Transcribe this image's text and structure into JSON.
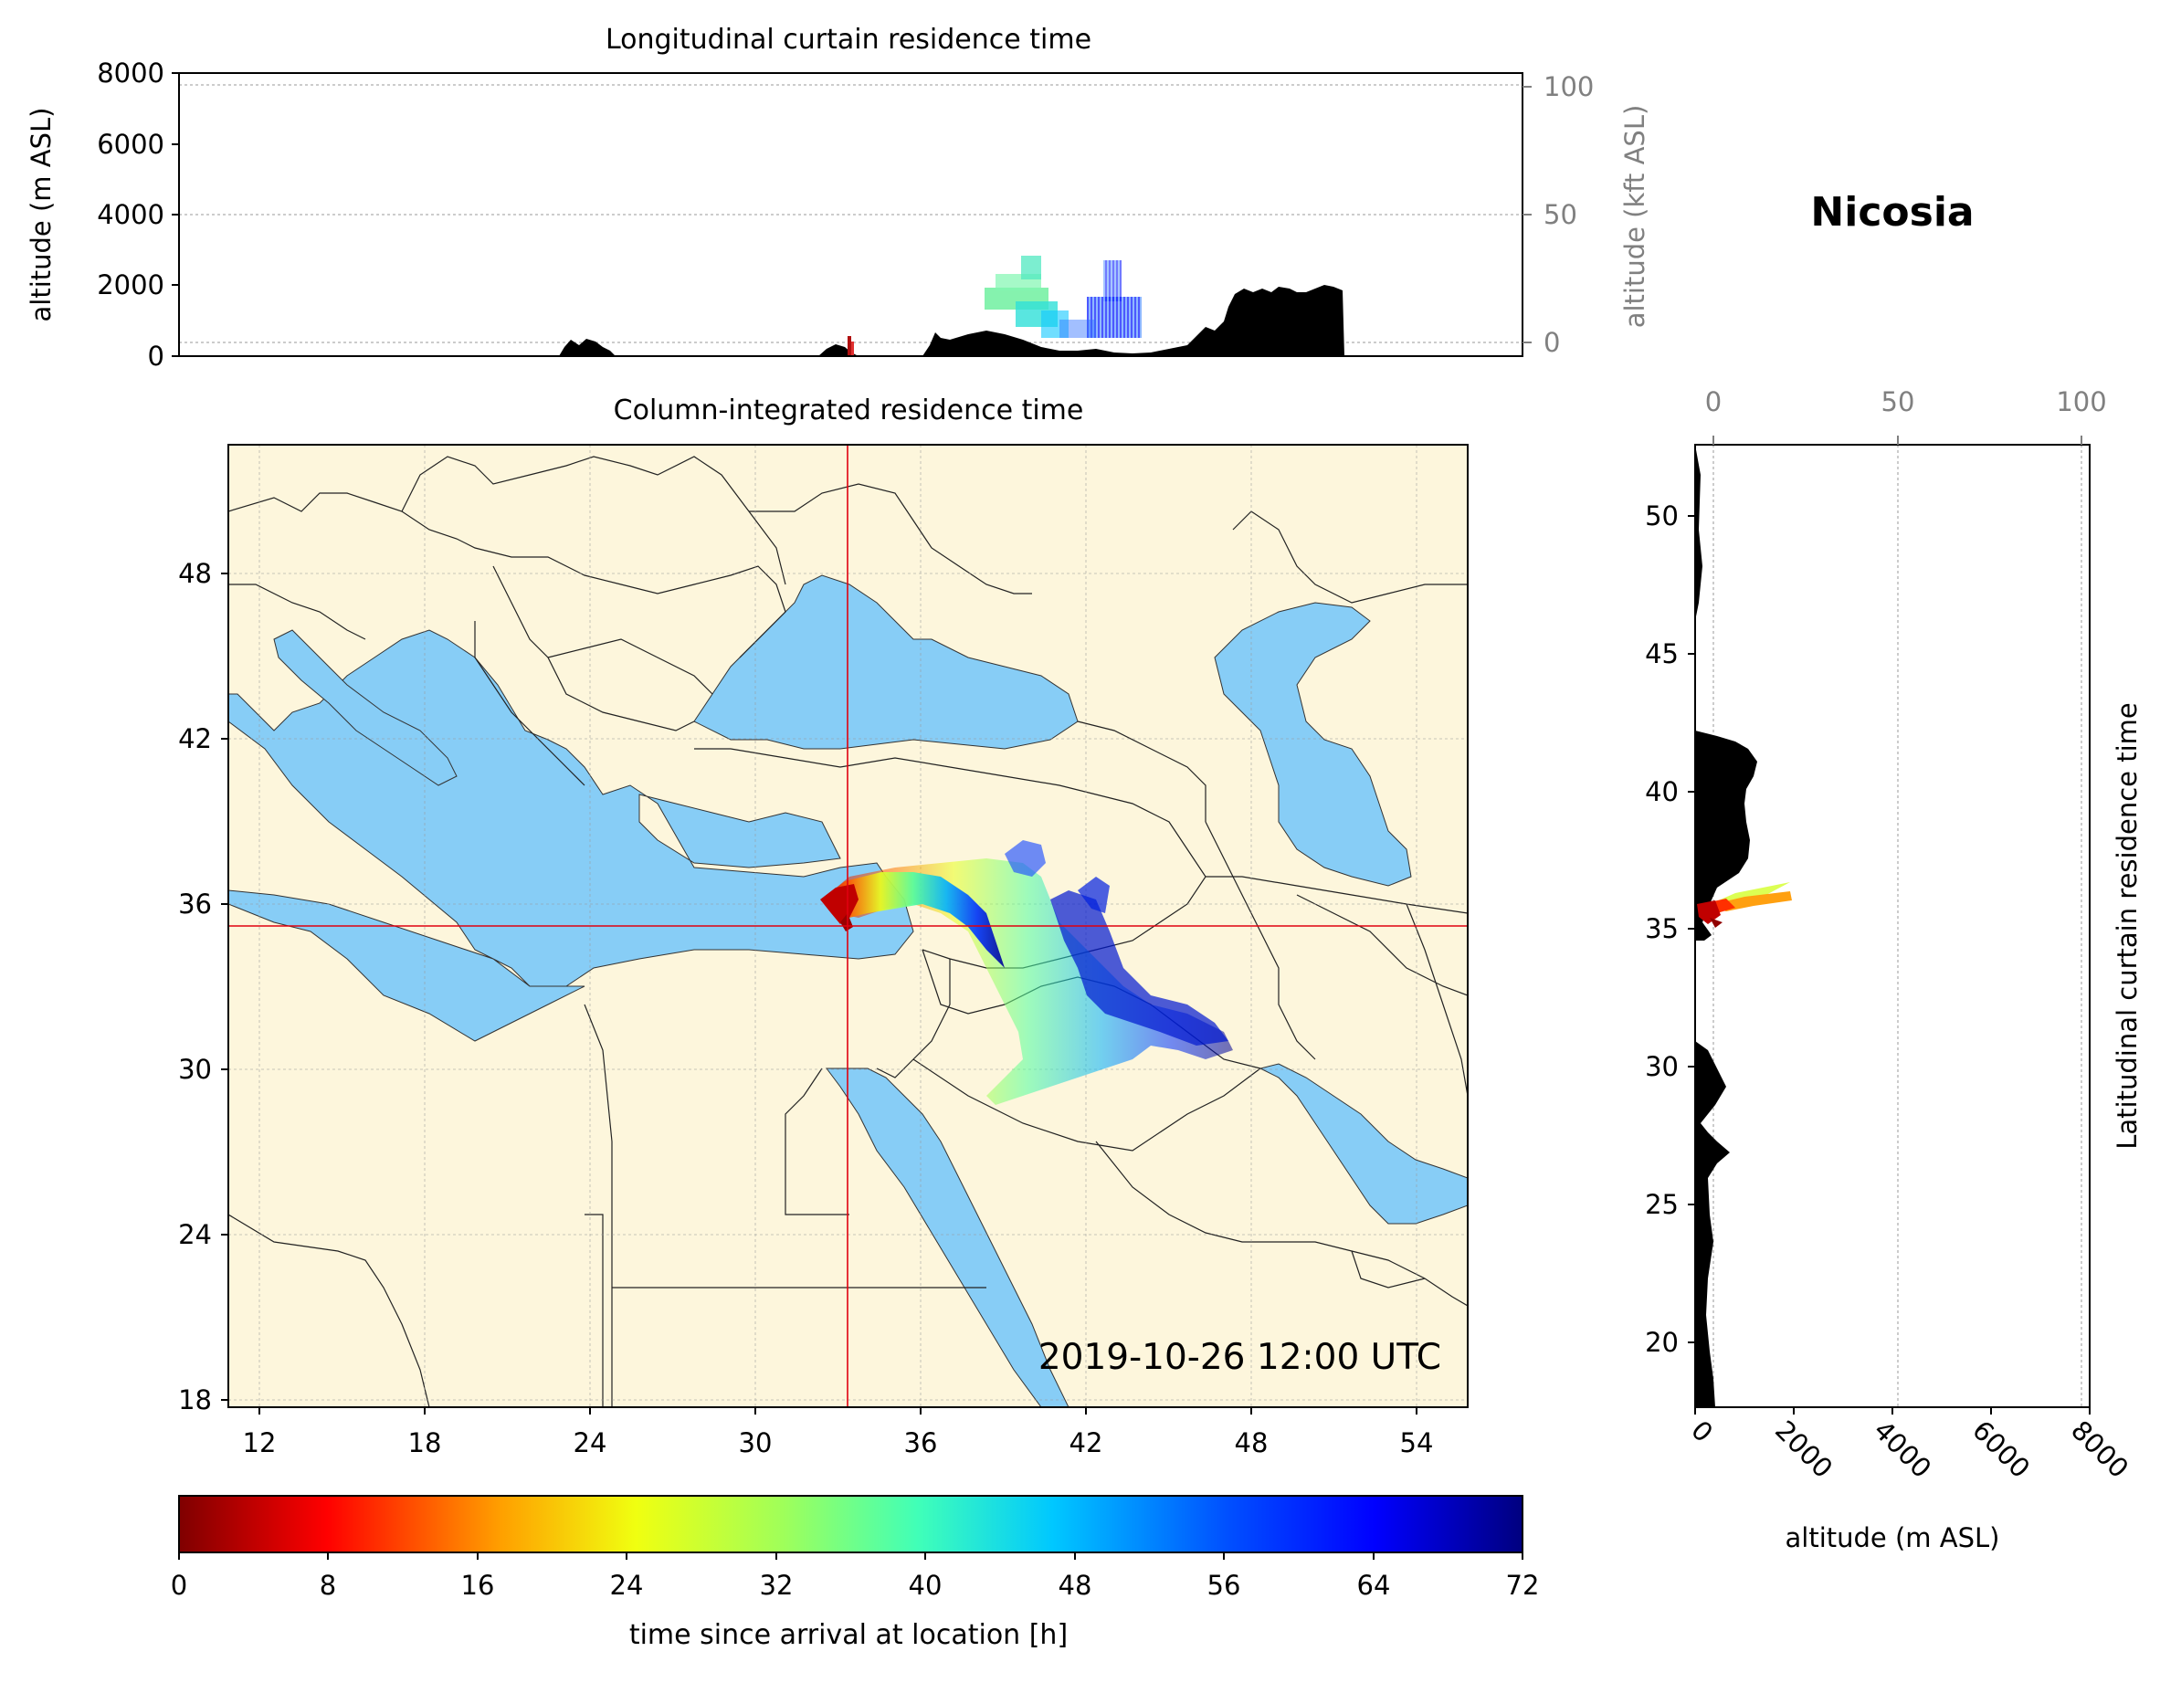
{
  "location_title": "Nicosia",
  "timestamp": "2019-10-26 12:00 UTC",
  "colors": {
    "land": "#fdf6dc",
    "sea": "#87cdf6",
    "terrain": "#000000",
    "crosshair": "#e0000f",
    "secondary_axis": "#808080",
    "colormap": "jet_r"
  },
  "longitudinal_curtain": {
    "title": "Longitudinal curtain residence time",
    "ylabel_left": "altitude (m ASL)",
    "ylabel_right": "altitude (kft ASL)",
    "yticks_left": [
      "0",
      "2000",
      "4000",
      "6000",
      "8000"
    ],
    "yticks_right": [
      "0",
      "50",
      "100"
    ],
    "ylim": [
      0,
      8000
    ]
  },
  "map": {
    "title": "Column-integrated residence time",
    "xticks": [
      "12",
      "18",
      "24",
      "30",
      "36",
      "42",
      "48",
      "54"
    ],
    "yticks": [
      "18",
      "24",
      "30",
      "36",
      "42",
      "48"
    ],
    "xlim": [
      10.9,
      55.8
    ],
    "ylim": [
      17.9,
      52.8
    ],
    "receptor": {
      "lon": 33.35,
      "lat": 35.17
    }
  },
  "latitudinal_curtain": {
    "ylabel": "Latitudinal curtain residence time",
    "xlabel": "altitude (m ASL)",
    "xticks_bottom": [
      "0",
      "2000",
      "4000",
      "6000",
      "8000"
    ],
    "xticks_top": [
      "0",
      "50",
      "100"
    ],
    "yticks": [
      "20",
      "25",
      "30",
      "35",
      "40",
      "45",
      "50"
    ],
    "xlim": [
      0,
      8000
    ],
    "ylim": [
      17.9,
      52.8
    ]
  },
  "colorbar": {
    "label": "time since arrival at location [h]",
    "ticks": [
      "0",
      "8",
      "16",
      "24",
      "32",
      "40",
      "48",
      "56",
      "64",
      "72"
    ],
    "range": [
      0,
      72
    ]
  }
}
